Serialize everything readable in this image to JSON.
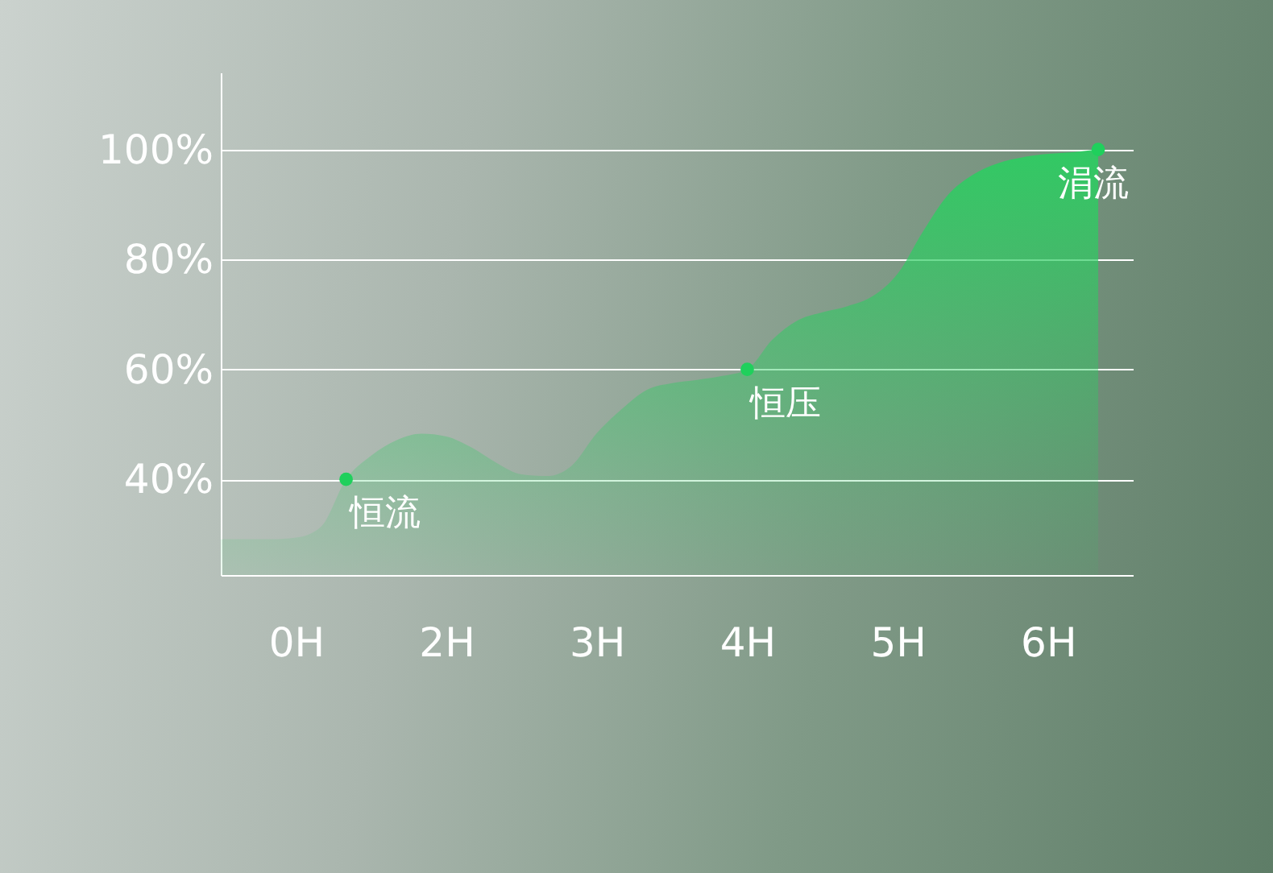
{
  "chart_data": {
    "type": "area",
    "categories": [
      null,
      null,
      null,
      "0H",
      null,
      null,
      null,
      null,
      null,
      "2H",
      null,
      null,
      null,
      null,
      null,
      "3H",
      null,
      null,
      null,
      null,
      null,
      "4H",
      null,
      null,
      null,
      null,
      null,
      "5H",
      null,
      null,
      null,
      null,
      null,
      "6H",
      null,
      null,
      null
    ],
    "series": [
      {
        "color": "#2ecc62",
        "values": [
          29.1,
          29.1,
          29.1,
          29.4,
          31.4,
          40,
          44.3,
          47.1,
          48.3,
          47.8,
          45.8,
          43.0,
          40.9,
          40.6,
          42.5,
          48.4,
          52.8,
          56.3,
          57.5,
          58.1,
          58.8,
          60,
          65.4,
          68.9,
          70.4,
          71.5,
          73.3,
          77.4,
          85.0,
          91.7,
          95.4,
          97.5,
          98.6,
          99.2,
          99.5,
          100,
          null
        ]
      },
      {
        "type": "scatter",
        "color": "#1fd05c",
        "values": [
          null,
          null,
          null,
          null,
          null,
          40,
          null,
          null,
          null,
          null,
          null,
          null,
          null,
          null,
          null,
          null,
          null,
          null,
          null,
          null,
          null,
          60,
          null,
          null,
          null,
          null,
          null,
          null,
          null,
          null,
          null,
          null,
          null,
          null,
          null,
          100,
          null
        ]
      }
    ],
    "ylim": [
      22.6,
      114
    ],
    "yticks": [
      {
        "value": 40,
        "label": "40%"
      },
      {
        "value": 60,
        "label": "60%"
      },
      {
        "value": 80,
        "label": "80%"
      },
      {
        "value": 100,
        "label": "100%"
      }
    ],
    "grid": "y",
    "annotations": [
      "恒流",
      "恒压",
      "涓流"
    ]
  }
}
